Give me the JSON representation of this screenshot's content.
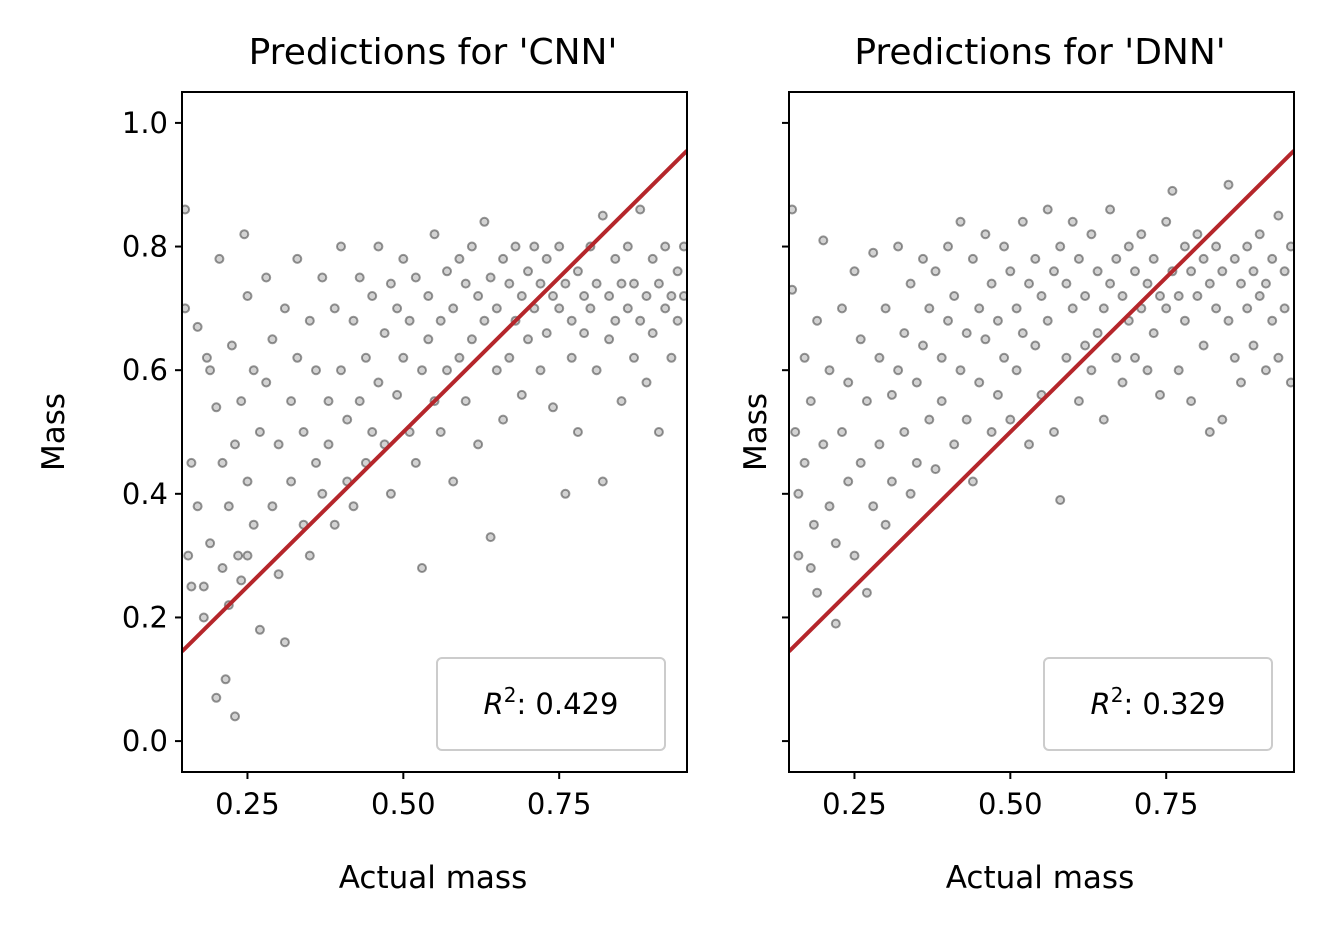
{
  "chart_data": [
    {
      "type": "scatter",
      "title": "Predictions for 'CNN'",
      "xlabel": "Actual mass",
      "ylabel": "Mass",
      "xlim": [
        0.145,
        0.955
      ],
      "ylim": [
        -0.05,
        1.05
      ],
      "xticks": [
        0.25,
        0.5,
        0.75
      ],
      "xtick_labels": [
        "0.25",
        "0.50",
        "0.75"
      ],
      "yticks": [
        0.0,
        0.2,
        0.4,
        0.6,
        0.8,
        1.0
      ],
      "ytick_labels": [
        "0.0",
        "0.2",
        "0.4",
        "0.6",
        "0.8",
        "1.0"
      ],
      "show_yticklabels": true,
      "grid": false,
      "legend_position": "lower-right",
      "legend_label": "R²: 0.429",
      "legend_prefix": "R",
      "legend_sup": "2",
      "legend_value": ": 0.429",
      "fit_line": {
        "x": [
          0.145,
          0.955
        ],
        "y": [
          0.145,
          0.955
        ],
        "color": "#b5262b"
      },
      "point_color": "#000000",
      "points": [
        [
          0.15,
          0.86
        ],
        [
          0.15,
          0.7
        ],
        [
          0.155,
          0.3
        ],
        [
          0.16,
          0.25
        ],
        [
          0.16,
          0.45
        ],
        [
          0.17,
          0.67
        ],
        [
          0.17,
          0.38
        ],
        [
          0.18,
          0.25
        ],
        [
          0.18,
          0.2
        ],
        [
          0.185,
          0.62
        ],
        [
          0.19,
          0.6
        ],
        [
          0.19,
          0.32
        ],
        [
          0.2,
          0.54
        ],
        [
          0.2,
          0.07
        ],
        [
          0.205,
          0.78
        ],
        [
          0.21,
          0.45
        ],
        [
          0.21,
          0.28
        ],
        [
          0.215,
          0.1
        ],
        [
          0.22,
          0.38
        ],
        [
          0.22,
          0.22
        ],
        [
          0.225,
          0.64
        ],
        [
          0.23,
          0.48
        ],
        [
          0.23,
          0.04
        ],
        [
          0.235,
          0.3
        ],
        [
          0.24,
          0.55
        ],
        [
          0.24,
          0.26
        ],
        [
          0.245,
          0.82
        ],
        [
          0.25,
          0.72
        ],
        [
          0.25,
          0.42
        ],
        [
          0.25,
          0.3
        ],
        [
          0.26,
          0.6
        ],
        [
          0.26,
          0.35
        ],
        [
          0.27,
          0.5
        ],
        [
          0.27,
          0.18
        ],
        [
          0.28,
          0.75
        ],
        [
          0.28,
          0.58
        ],
        [
          0.29,
          0.65
        ],
        [
          0.29,
          0.38
        ],
        [
          0.3,
          0.48
        ],
        [
          0.3,
          0.27
        ],
        [
          0.31,
          0.7
        ],
        [
          0.31,
          0.16
        ],
        [
          0.32,
          0.55
        ],
        [
          0.32,
          0.42
        ],
        [
          0.33,
          0.78
        ],
        [
          0.33,
          0.62
        ],
        [
          0.34,
          0.35
        ],
        [
          0.34,
          0.5
        ],
        [
          0.35,
          0.68
        ],
        [
          0.35,
          0.3
        ],
        [
          0.36,
          0.45
        ],
        [
          0.36,
          0.6
        ],
        [
          0.37,
          0.75
        ],
        [
          0.37,
          0.4
        ],
        [
          0.38,
          0.55
        ],
        [
          0.38,
          0.48
        ],
        [
          0.39,
          0.7
        ],
        [
          0.39,
          0.35
        ],
        [
          0.4,
          0.8
        ],
        [
          0.4,
          0.6
        ],
        [
          0.41,
          0.52
        ],
        [
          0.41,
          0.42
        ],
        [
          0.42,
          0.68
        ],
        [
          0.42,
          0.38
        ],
        [
          0.43,
          0.75
        ],
        [
          0.43,
          0.55
        ],
        [
          0.44,
          0.62
        ],
        [
          0.44,
          0.45
        ],
        [
          0.45,
          0.72
        ],
        [
          0.45,
          0.5
        ],
        [
          0.46,
          0.8
        ],
        [
          0.46,
          0.58
        ],
        [
          0.47,
          0.66
        ],
        [
          0.47,
          0.48
        ],
        [
          0.48,
          0.74
        ],
        [
          0.48,
          0.4
        ],
        [
          0.49,
          0.7
        ],
        [
          0.49,
          0.56
        ],
        [
          0.5,
          0.78
        ],
        [
          0.5,
          0.62
        ],
        [
          0.51,
          0.68
        ],
        [
          0.51,
          0.5
        ],
        [
          0.52,
          0.75
        ],
        [
          0.52,
          0.45
        ],
        [
          0.53,
          0.6
        ],
        [
          0.53,
          0.28
        ],
        [
          0.54,
          0.72
        ],
        [
          0.54,
          0.65
        ],
        [
          0.55,
          0.82
        ],
        [
          0.55,
          0.55
        ],
        [
          0.56,
          0.68
        ],
        [
          0.56,
          0.5
        ],
        [
          0.57,
          0.76
        ],
        [
          0.57,
          0.6
        ],
        [
          0.58,
          0.7
        ],
        [
          0.58,
          0.42
        ],
        [
          0.59,
          0.78
        ],
        [
          0.59,
          0.62
        ],
        [
          0.6,
          0.74
        ],
        [
          0.6,
          0.55
        ],
        [
          0.61,
          0.8
        ],
        [
          0.61,
          0.65
        ],
        [
          0.62,
          0.72
        ],
        [
          0.62,
          0.48
        ],
        [
          0.63,
          0.84
        ],
        [
          0.63,
          0.68
        ],
        [
          0.64,
          0.75
        ],
        [
          0.64,
          0.33
        ],
        [
          0.65,
          0.7
        ],
        [
          0.65,
          0.6
        ],
        [
          0.66,
          0.78
        ],
        [
          0.66,
          0.52
        ],
        [
          0.67,
          0.74
        ],
        [
          0.67,
          0.62
        ],
        [
          0.68,
          0.8
        ],
        [
          0.68,
          0.68
        ],
        [
          0.69,
          0.72
        ],
        [
          0.69,
          0.56
        ],
        [
          0.7,
          0.76
        ],
        [
          0.7,
          0.65
        ],
        [
          0.71,
          0.8
        ],
        [
          0.71,
          0.7
        ],
        [
          0.72,
          0.74
        ],
        [
          0.72,
          0.6
        ],
        [
          0.73,
          0.78
        ],
        [
          0.73,
          0.66
        ],
        [
          0.74,
          0.72
        ],
        [
          0.74,
          0.54
        ],
        [
          0.75,
          0.8
        ],
        [
          0.75,
          0.7
        ],
        [
          0.76,
          0.74
        ],
        [
          0.76,
          0.4
        ],
        [
          0.77,
          0.68
        ],
        [
          0.77,
          0.62
        ],
        [
          0.78,
          0.76
        ],
        [
          0.78,
          0.5
        ],
        [
          0.79,
          0.72
        ],
        [
          0.79,
          0.66
        ],
        [
          0.8,
          0.8
        ],
        [
          0.8,
          0.7
        ],
        [
          0.81,
          0.74
        ],
        [
          0.81,
          0.6
        ],
        [
          0.82,
          0.85
        ],
        [
          0.82,
          0.42
        ],
        [
          0.83,
          0.72
        ],
        [
          0.83,
          0.65
        ],
        [
          0.84,
          0.78
        ],
        [
          0.84,
          0.68
        ],
        [
          0.85,
          0.74
        ],
        [
          0.85,
          0.55
        ],
        [
          0.86,
          0.7
        ],
        [
          0.86,
          0.8
        ],
        [
          0.87,
          0.74
        ],
        [
          0.87,
          0.62
        ],
        [
          0.88,
          0.86
        ],
        [
          0.88,
          0.68
        ],
        [
          0.89,
          0.72
        ],
        [
          0.89,
          0.58
        ],
        [
          0.9,
          0.78
        ],
        [
          0.9,
          0.66
        ],
        [
          0.91,
          0.74
        ],
        [
          0.91,
          0.5
        ],
        [
          0.92,
          0.8
        ],
        [
          0.92,
          0.7
        ],
        [
          0.93,
          0.72
        ],
        [
          0.93,
          0.62
        ],
        [
          0.94,
          0.76
        ],
        [
          0.94,
          0.68
        ],
        [
          0.95,
          0.8
        ],
        [
          0.95,
          0.72
        ]
      ]
    },
    {
      "type": "scatter",
      "title": "Predictions for 'DNN'",
      "xlabel": "Actual mass",
      "ylabel": "Mass",
      "xlim": [
        0.145,
        0.955
      ],
      "ylim": [
        -0.05,
        1.05
      ],
      "xticks": [
        0.25,
        0.5,
        0.75
      ],
      "xtick_labels": [
        "0.25",
        "0.50",
        "0.75"
      ],
      "yticks": [
        0.0,
        0.2,
        0.4,
        0.6,
        0.8,
        1.0
      ],
      "ytick_labels": [
        "",
        "",
        "",
        "",
        "",
        ""
      ],
      "show_yticklabels": false,
      "grid": false,
      "legend_position": "lower-right",
      "legend_label": "R²: 0.329",
      "legend_prefix": "R",
      "legend_sup": "2",
      "legend_value": ": 0.329",
      "fit_line": {
        "x": [
          0.145,
          0.955
        ],
        "y": [
          0.145,
          0.955
        ],
        "color": "#b5262b"
      },
      "point_color": "#000000",
      "points": [
        [
          0.15,
          0.86
        ],
        [
          0.15,
          0.73
        ],
        [
          0.155,
          0.5
        ],
        [
          0.16,
          0.4
        ],
        [
          0.16,
          0.3
        ],
        [
          0.17,
          0.62
        ],
        [
          0.17,
          0.45
        ],
        [
          0.18,
          0.55
        ],
        [
          0.18,
          0.28
        ],
        [
          0.185,
          0.35
        ],
        [
          0.19,
          0.68
        ],
        [
          0.19,
          0.24
        ],
        [
          0.2,
          0.81
        ],
        [
          0.2,
          0.48
        ],
        [
          0.21,
          0.6
        ],
        [
          0.21,
          0.38
        ],
        [
          0.22,
          0.32
        ],
        [
          0.22,
          0.19
        ],
        [
          0.23,
          0.7
        ],
        [
          0.23,
          0.5
        ],
        [
          0.24,
          0.58
        ],
        [
          0.24,
          0.42
        ],
        [
          0.25,
          0.76
        ],
        [
          0.25,
          0.3
        ],
        [
          0.26,
          0.65
        ],
        [
          0.26,
          0.45
        ],
        [
          0.27,
          0.55
        ],
        [
          0.27,
          0.24
        ],
        [
          0.28,
          0.79
        ],
        [
          0.28,
          0.38
        ],
        [
          0.29,
          0.62
        ],
        [
          0.29,
          0.48
        ],
        [
          0.3,
          0.7
        ],
        [
          0.3,
          0.35
        ],
        [
          0.31,
          0.56
        ],
        [
          0.31,
          0.42
        ],
        [
          0.32,
          0.8
        ],
        [
          0.32,
          0.6
        ],
        [
          0.33,
          0.66
        ],
        [
          0.33,
          0.5
        ],
        [
          0.34,
          0.74
        ],
        [
          0.34,
          0.4
        ],
        [
          0.35,
          0.58
        ],
        [
          0.35,
          0.45
        ],
        [
          0.36,
          0.78
        ],
        [
          0.36,
          0.64
        ],
        [
          0.37,
          0.7
        ],
        [
          0.37,
          0.52
        ],
        [
          0.38,
          0.76
        ],
        [
          0.38,
          0.44
        ],
        [
          0.39,
          0.62
        ],
        [
          0.39,
          0.55
        ],
        [
          0.4,
          0.8
        ],
        [
          0.4,
          0.68
        ],
        [
          0.41,
          0.72
        ],
        [
          0.41,
          0.48
        ],
        [
          0.42,
          0.84
        ],
        [
          0.42,
          0.6
        ],
        [
          0.43,
          0.66
        ],
        [
          0.43,
          0.52
        ],
        [
          0.44,
          0.78
        ],
        [
          0.44,
          0.42
        ],
        [
          0.45,
          0.7
        ],
        [
          0.45,
          0.58
        ],
        [
          0.46,
          0.82
        ],
        [
          0.46,
          0.65
        ],
        [
          0.47,
          0.74
        ],
        [
          0.47,
          0.5
        ],
        [
          0.48,
          0.68
        ],
        [
          0.48,
          0.56
        ],
        [
          0.49,
          0.8
        ],
        [
          0.49,
          0.62
        ],
        [
          0.5,
          0.76
        ],
        [
          0.5,
          0.52
        ],
        [
          0.51,
          0.7
        ],
        [
          0.51,
          0.6
        ],
        [
          0.52,
          0.84
        ],
        [
          0.52,
          0.66
        ],
        [
          0.53,
          0.74
        ],
        [
          0.53,
          0.48
        ],
        [
          0.54,
          0.78
        ],
        [
          0.54,
          0.64
        ],
        [
          0.55,
          0.72
        ],
        [
          0.55,
          0.56
        ],
        [
          0.56,
          0.86
        ],
        [
          0.56,
          0.68
        ],
        [
          0.57,
          0.76
        ],
        [
          0.57,
          0.5
        ],
        [
          0.58,
          0.8
        ],
        [
          0.58,
          0.39
        ],
        [
          0.59,
          0.74
        ],
        [
          0.59,
          0.62
        ],
        [
          0.6,
          0.84
        ],
        [
          0.6,
          0.7
        ],
        [
          0.61,
          0.78
        ],
        [
          0.61,
          0.55
        ],
        [
          0.62,
          0.72
        ],
        [
          0.62,
          0.64
        ],
        [
          0.63,
          0.82
        ],
        [
          0.63,
          0.6
        ],
        [
          0.64,
          0.76
        ],
        [
          0.64,
          0.66
        ],
        [
          0.65,
          0.7
        ],
        [
          0.65,
          0.52
        ],
        [
          0.66,
          0.86
        ],
        [
          0.66,
          0.74
        ],
        [
          0.67,
          0.78
        ],
        [
          0.67,
          0.62
        ],
        [
          0.68,
          0.72
        ],
        [
          0.68,
          0.58
        ],
        [
          0.69,
          0.8
        ],
        [
          0.69,
          0.68
        ],
        [
          0.7,
          0.76
        ],
        [
          0.7,
          0.62
        ],
        [
          0.71,
          0.82
        ],
        [
          0.71,
          0.7
        ],
        [
          0.72,
          0.74
        ],
        [
          0.72,
          0.6
        ],
        [
          0.73,
          0.78
        ],
        [
          0.73,
          0.66
        ],
        [
          0.74,
          0.72
        ],
        [
          0.74,
          0.56
        ],
        [
          0.75,
          0.84
        ],
        [
          0.75,
          0.7
        ],
        [
          0.76,
          0.89
        ],
        [
          0.76,
          0.76
        ],
        [
          0.77,
          0.72
        ],
        [
          0.77,
          0.6
        ],
        [
          0.78,
          0.8
        ],
        [
          0.78,
          0.68
        ],
        [
          0.79,
          0.76
        ],
        [
          0.79,
          0.55
        ],
        [
          0.8,
          0.82
        ],
        [
          0.8,
          0.72
        ],
        [
          0.81,
          0.78
        ],
        [
          0.81,
          0.64
        ],
        [
          0.82,
          0.74
        ],
        [
          0.82,
          0.5
        ],
        [
          0.83,
          0.8
        ],
        [
          0.83,
          0.7
        ],
        [
          0.84,
          0.76
        ],
        [
          0.84,
          0.52
        ],
        [
          0.85,
          0.9
        ],
        [
          0.85,
          0.68
        ],
        [
          0.86,
          0.78
        ],
        [
          0.86,
          0.62
        ],
        [
          0.87,
          0.74
        ],
        [
          0.87,
          0.58
        ],
        [
          0.88,
          0.8
        ],
        [
          0.88,
          0.7
        ],
        [
          0.89,
          0.76
        ],
        [
          0.89,
          0.64
        ],
        [
          0.9,
          0.82
        ],
        [
          0.9,
          0.72
        ],
        [
          0.91,
          0.74
        ],
        [
          0.91,
          0.6
        ],
        [
          0.92,
          0.78
        ],
        [
          0.92,
          0.68
        ],
        [
          0.93,
          0.85
        ],
        [
          0.93,
          0.62
        ],
        [
          0.94,
          0.76
        ],
        [
          0.94,
          0.7
        ],
        [
          0.95,
          0.8
        ],
        [
          0.95,
          0.58
        ]
      ]
    }
  ]
}
